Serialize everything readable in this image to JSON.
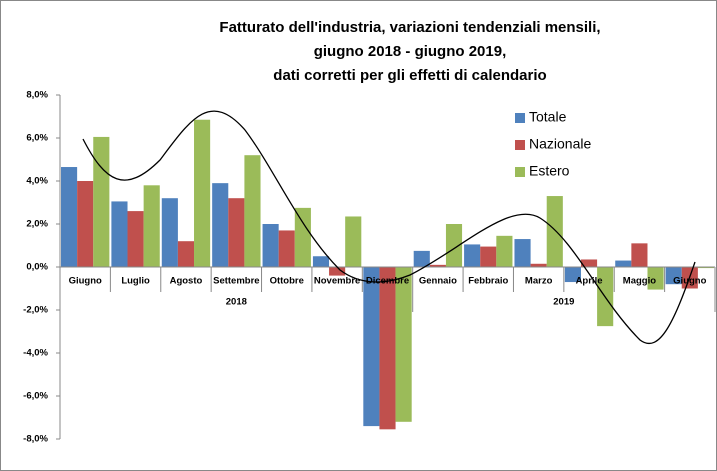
{
  "chart_data": {
    "type": "bar",
    "title": [
      "Fatturato dell'industria, variazioni tendenziali mensili,",
      "giugno 2018 - giugno 2019,",
      "dati corretti per gli effetti di calendario"
    ],
    "categories": [
      "Giugno",
      "Luglio",
      "Agosto",
      "Settembre",
      "Ottobre",
      "Novembre",
      "Dicembre",
      "Gennaio",
      "Febbraio",
      "Marzo",
      "Aprile",
      "Maggio",
      "Giugno"
    ],
    "groups": [
      {
        "label": "2018",
        "count": 7
      },
      {
        "label": "2019",
        "count": 6
      }
    ],
    "series": [
      {
        "name": "Totale",
        "color": "#4f81bd",
        "values": [
          4.65,
          3.05,
          3.2,
          3.9,
          2.0,
          0.5,
          -7.4,
          0.75,
          1.05,
          1.3,
          -0.7,
          0.3,
          -0.8
        ]
      },
      {
        "name": "Nazionale",
        "color": "#c0504d",
        "values": [
          4.0,
          2.6,
          1.2,
          3.2,
          1.7,
          -0.4,
          -7.55,
          0.1,
          0.95,
          0.15,
          0.35,
          1.1,
          -1.0
        ]
      },
      {
        "name": "Estero",
        "color": "#9bbb59",
        "values": [
          6.05,
          3.8,
          6.85,
          5.2,
          2.75,
          2.35,
          -7.2,
          2.0,
          1.45,
          3.3,
          -2.75,
          -1.05,
          -0.05
        ]
      }
    ],
    "ylim": [
      -8,
      8
    ],
    "yticks": [
      {
        "value": -8,
        "label": "-8,0%"
      },
      {
        "value": -6,
        "label": "-6,0%"
      },
      {
        "value": -4,
        "label": "-4,0%"
      },
      {
        "value": -2,
        "label": "-2,0%"
      },
      {
        "value": 0,
        "label": "0,0%"
      },
      {
        "value": 2,
        "label": "2,0%"
      },
      {
        "value": 4,
        "label": "4,0%"
      },
      {
        "value": 6,
        "label": "6,0%"
      },
      {
        "value": 8,
        "label": "8,0%"
      }
    ],
    "grid": false,
    "legend": "upper right"
  }
}
